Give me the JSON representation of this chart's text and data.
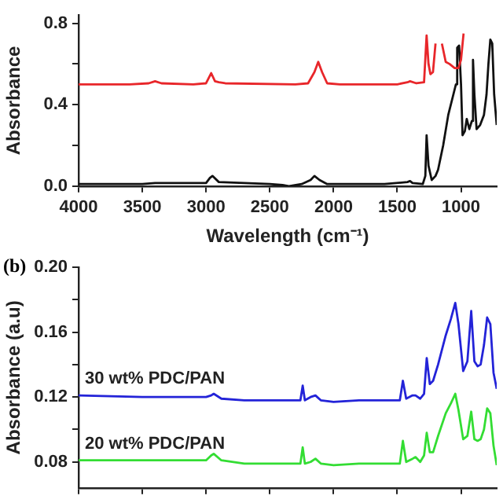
{
  "chart_data": [
    {
      "type": "line",
      "xlabel": "Wavelength (cm⁻¹)",
      "ylabel": "Absorbance",
      "xlim": [
        4000,
        720
      ],
      "ylim": [
        0,
        0.84
      ],
      "xticks": [
        4000,
        3500,
        3000,
        2500,
        2000,
        1500,
        1000
      ],
      "yticks": [
        {
          "value": 0,
          "label": "0.0"
        },
        {
          "value": 0.2,
          "label": null
        },
        {
          "value": 0.4,
          "label": "0.4"
        },
        {
          "value": 0.6,
          "label": null
        },
        {
          "value": 0.8,
          "label": "0.8"
        }
      ],
      "legend": false,
      "grid": false,
      "marker": "none",
      "series": [
        {
          "color": "#e8262a",
          "x": [
            4000,
            3600,
            3450,
            3400,
            3350,
            3100,
            3000,
            2960,
            2930,
            2900,
            2850,
            2300,
            2200,
            2150,
            2120,
            2090,
            2050,
            1950,
            1500,
            1420,
            1400,
            1350,
            1290,
            1270,
            1255,
            1240,
            1220,
            1200,
            1184,
            1150,
            1120,
            1090,
            1050,
            1020,
            1000,
            980
          ],
          "values": [
            0.5,
            0.5,
            0.505,
            0.515,
            0.505,
            0.5,
            0.505,
            0.555,
            0.515,
            0.51,
            0.505,
            0.5,
            0.505,
            0.56,
            0.61,
            0.56,
            0.505,
            0.5,
            0.5,
            0.51,
            0.515,
            0.505,
            0.51,
            0.74,
            0.6,
            0.55,
            0.56,
            0.7,
            null,
            0.7,
            0.61,
            0.6,
            0.58,
            0.58,
            0.62,
            0.75
          ]
        },
        {
          "color": "#111111",
          "x": [
            4000,
            3500,
            3400,
            3000,
            2970,
            2950,
            2900,
            2500,
            2400,
            2350,
            2250,
            2180,
            2150,
            2110,
            2050,
            1600,
            1420,
            1400,
            1380,
            1300,
            1280,
            1270,
            1255,
            1230,
            1200,
            1180,
            1140,
            1100,
            1060,
            1040,
            1030,
            1015,
            1000,
            988,
            970,
            955,
            935,
            915,
            906,
            895,
            878,
            850,
            820,
            800,
            785,
            770,
            755,
            740,
            720
          ],
          "values": [
            0.01,
            0.01,
            0.015,
            0.015,
            0.04,
            0.05,
            0.02,
            0.01,
            0.005,
            0.0,
            0.01,
            0.03,
            0.05,
            0.03,
            0.01,
            0.01,
            0.02,
            0.025,
            0.015,
            0.01,
            0.05,
            0.25,
            0.1,
            0.03,
            0.05,
            0.08,
            0.2,
            0.35,
            0.45,
            0.5,
            0.68,
            0.69,
            0.5,
            0.25,
            0.27,
            0.33,
            0.28,
            0.32,
            0.62,
            0.45,
            0.28,
            0.3,
            0.35,
            0.45,
            0.6,
            0.72,
            0.7,
            0.45,
            0.3
          ]
        }
      ]
    },
    {
      "type": "line",
      "ylabel": "Absorbance (a.u)",
      "annotations": [
        "(b)"
      ],
      "xlim": [
        4000,
        720
      ],
      "ylim": [
        0.064,
        0.2
      ],
      "xticks": [
        4000,
        3500,
        3000,
        2500,
        2000,
        1500,
        1000
      ],
      "yticks": [
        0.08,
        {
          "value": 0.1,
          "label": null
        },
        0.12,
        {
          "value": 0.14,
          "label": null
        },
        0.16,
        {
          "value": 0.18,
          "label": null
        },
        {
          "value": 0.2,
          "label": "0.20"
        }
      ],
      "tick_labels": "y",
      "legend": false,
      "grid": false,
      "marker": "none",
      "series": [
        {
          "name": "30 wt% PDC/PAN",
          "color": "#2323d8",
          "x": [
            4000,
            3500,
            3000,
            2960,
            2940,
            2880,
            2700,
            2400,
            2260,
            2242,
            2225,
            2180,
            2142,
            2100,
            2000,
            1800,
            1600,
            1480,
            1456,
            1430,
            1380,
            1357,
            1320,
            1290,
            1269,
            1245,
            1219,
            1180,
            1120,
            1080,
            1045,
            1020,
            983,
            950,
            920,
            895,
            870,
            846,
            820,
            795,
            770,
            745,
            720
          ],
          "values": [
            0.121,
            0.12,
            0.12,
            0.121,
            0.122,
            0.119,
            0.118,
            0.118,
            0.118,
            0.127,
            0.118,
            0.12,
            0.121,
            0.118,
            0.117,
            0.118,
            0.118,
            0.118,
            0.13,
            0.119,
            0.121,
            0.121,
            0.119,
            0.122,
            0.144,
            0.128,
            0.13,
            0.14,
            0.158,
            0.168,
            0.178,
            0.165,
            0.136,
            0.142,
            0.173,
            0.142,
            0.139,
            0.14,
            0.152,
            0.169,
            0.165,
            0.135,
            0.125
          ]
        },
        {
          "name": "20 wt% PDC/PAN",
          "color": "#33dd33",
          "x": [
            4000,
            3500,
            3000,
            2960,
            2940,
            2880,
            2700,
            2400,
            2260,
            2242,
            2225,
            2180,
            2142,
            2100,
            2000,
            1800,
            1600,
            1480,
            1456,
            1430,
            1380,
            1357,
            1320,
            1290,
            1269,
            1245,
            1219,
            1180,
            1120,
            1080,
            1045,
            1020,
            983,
            950,
            920,
            895,
            870,
            846,
            820,
            795,
            770,
            745,
            720
          ],
          "values": [
            0.081,
            0.081,
            0.081,
            0.084,
            0.085,
            0.081,
            0.079,
            0.079,
            0.079,
            0.089,
            0.079,
            0.08,
            0.082,
            0.079,
            0.078,
            0.079,
            0.079,
            0.079,
            0.093,
            0.08,
            0.082,
            0.083,
            0.08,
            0.084,
            0.098,
            0.086,
            0.086,
            0.096,
            0.11,
            0.116,
            0.122,
            0.112,
            0.094,
            0.096,
            0.111,
            0.094,
            0.093,
            0.094,
            0.1,
            0.113,
            0.11,
            0.09,
            0.078
          ]
        }
      ]
    }
  ]
}
